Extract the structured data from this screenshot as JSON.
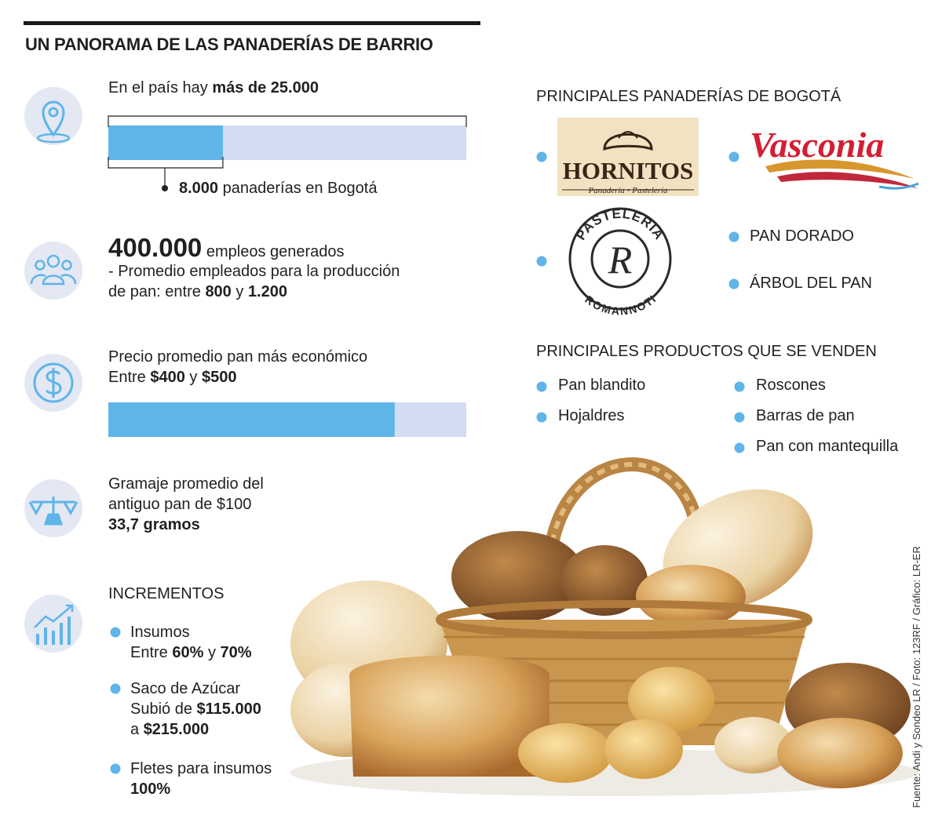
{
  "title": "UN PANORAMA DE LAS PANADERÍAS DE BARRIO",
  "stats": [
    {
      "lines": [
        [
          {
            "text": "En el país hay "
          },
          {
            "text": "más de 25.000",
            "bold": true,
            "value": 25000
          }
        ]
      ],
      "note": [
        [
          {
            "text": "8.000",
            "bold": true,
            "value": 8000
          },
          {
            "text": " panaderías en Bogotá"
          }
        ]
      ]
    },
    {
      "lines": [
        [
          {
            "text": "400.000",
            "bold": true,
            "large": true
          },
          {
            "text": " empleos generados"
          }
        ],
        [
          {
            "text": "- Promedio empleados para la producción"
          }
        ],
        [
          {
            "text": "de pan: entre "
          },
          {
            "text": "800",
            "bold": true
          },
          {
            "text": " y "
          },
          {
            "text": "1.200",
            "bold": true
          }
        ]
      ]
    },
    {
      "lines": [
        [
          {
            "text": "Precio promedio pan más económico"
          }
        ],
        [
          {
            "text": "Entre "
          },
          {
            "text": "$400",
            "bold": true,
            "value": 400
          },
          {
            "text": " y "
          },
          {
            "text": "$500",
            "bold": true,
            "value": 500
          }
        ]
      ]
    },
    {
      "lines": [
        [
          {
            "text": "Gramaje promedio del"
          }
        ],
        [
          {
            "text": "antiguo pan de $100"
          }
        ],
        [
          {
            "text": "33,7 gramos",
            "bold": true
          }
        ]
      ]
    },
    {
      "lines": [
        [
          {
            "text": "INCREMENTOS"
          }
        ]
      ],
      "items": [
        [
          [
            {
              "text": "Insumos"
            }
          ],
          [
            {
              "text": "Entre "
            },
            {
              "text": "60%",
              "bold": true
            },
            {
              "text": " y "
            },
            {
              "text": "70%",
              "bold": true
            }
          ]
        ],
        [
          [
            {
              "text": "Saco de Azúcar"
            }
          ],
          [
            {
              "text": "Subió de "
            },
            {
              "text": "$115.000",
              "bold": true
            }
          ],
          [
            {
              "text": "a "
            },
            {
              "text": "$215.000",
              "bold": true
            }
          ]
        ],
        [
          [
            {
              "text": "Fletes para insumos"
            }
          ],
          [
            {
              "text": "100%",
              "bold": true
            }
          ]
        ]
      ]
    }
  ],
  "bakeries_title": "PRINCIPALES PANADERÍAS DE BOGOTÁ",
  "bakeries": {
    "hornitos": {
      "name": "HORNITOS",
      "tagline": "Panadería • Pastelería"
    },
    "vasconia": "Vasconia",
    "romannoti": {
      "top": "PASTELERIA",
      "initial": "R",
      "bottom": "ROMANNOTI"
    },
    "others": [
      "PAN DORADO",
      "ÁRBOL DEL PAN"
    ]
  },
  "products_title": "PRINCIPALES PRODUCTOS QUE SE VENDEN",
  "products": [
    [
      "Pan blandito",
      "Hojaldres"
    ],
    [
      "Roscones",
      "Barras de pan",
      "Pan con mantequilla"
    ]
  ],
  "source": "Fuente: Andi y Sondeo LR / Foto: 123RF / Gráfico: LR-ER"
}
